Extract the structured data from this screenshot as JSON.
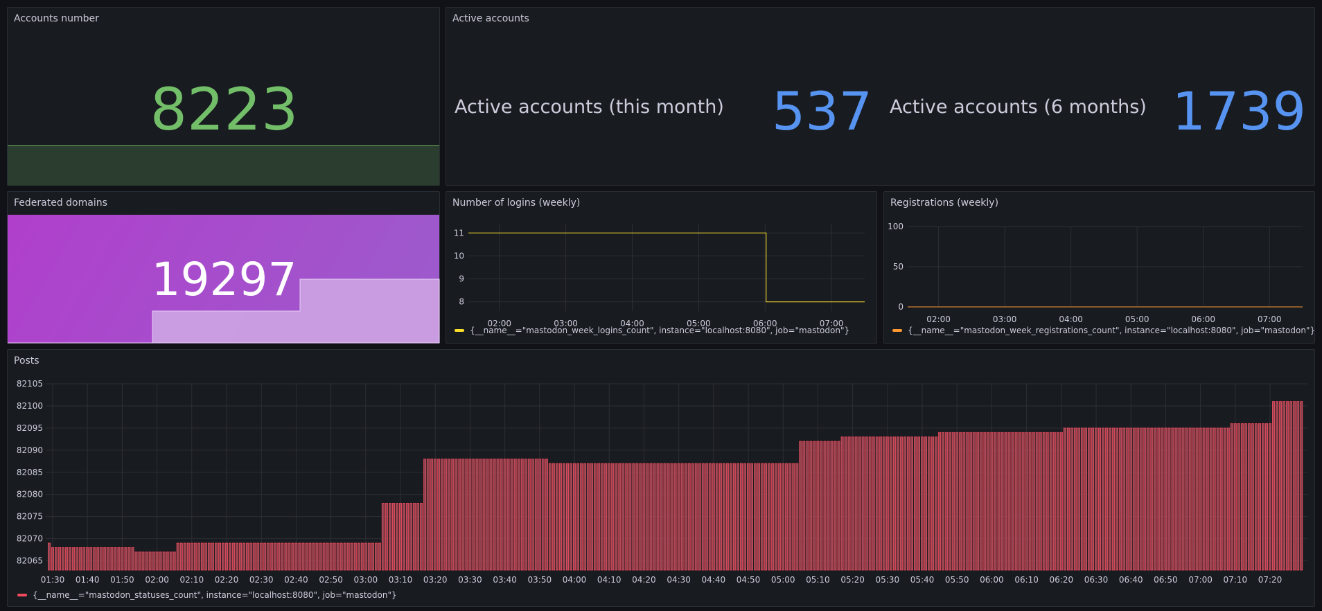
{
  "colors": {
    "green": "#73bf69",
    "green_fill": "#2b3d2f",
    "blue": "#5794f2",
    "purple_start": "#b03fcc",
    "purple_end": "#9c5ccc",
    "purple_spark": "#cba0e3",
    "yellow": "#fade2a",
    "orange": "#ff9830",
    "red": "#f2495c",
    "red_fill": "#8c4550"
  },
  "accounts": {
    "title": "Accounts number",
    "value": "8223"
  },
  "active": {
    "title": "Active accounts",
    "items": [
      {
        "label": "Active accounts (this month)",
        "value": "537"
      },
      {
        "label": "Active accounts (6 months)",
        "value": "1739"
      }
    ]
  },
  "federated": {
    "title": "Federated domains",
    "value": "19297",
    "sparkline_steps": [
      0,
      1,
      2
    ]
  },
  "chart_data": [
    {
      "type": "line",
      "title": "Number of logins (weekly)",
      "x_ticks": [
        "02:00",
        "03:00",
        "04:00",
        "05:00",
        "06:00",
        "07:00"
      ],
      "y_ticks": [
        "11",
        "10",
        "9",
        "8"
      ],
      "ylim": [
        7.6,
        11.4
      ],
      "xlim": [
        "01:32",
        "07:30"
      ],
      "series": [
        {
          "name": "{__name__=\"mastodon_week_logins_count\", instance=\"localhost:8080\", job=\"mastodon\"}",
          "points": [
            [
              "01:32",
              11
            ],
            [
              "06:01",
              11
            ],
            [
              "06:01",
              8
            ],
            [
              "07:30",
              8
            ]
          ]
        }
      ]
    },
    {
      "type": "line",
      "title": "Registrations (weekly)",
      "x_ticks": [
        "02:00",
        "03:00",
        "04:00",
        "05:00",
        "06:00",
        "07:00"
      ],
      "y_ticks": [
        "100",
        "50",
        "0"
      ],
      "ylim": [
        0,
        100
      ],
      "xlim": [
        "01:32",
        "07:30"
      ],
      "series": [
        {
          "name": "{__name__=\"mastodon_week_registrations_count\", instance=\"localhost:8080\", job=\"mastodon\"}",
          "points": [
            [
              "01:32",
              0
            ],
            [
              "07:30",
              0
            ]
          ]
        }
      ]
    },
    {
      "type": "bar",
      "title": "Posts",
      "x_ticks": [
        "01:30",
        "01:40",
        "01:50",
        "02:00",
        "02:10",
        "02:20",
        "02:30",
        "02:40",
        "02:50",
        "03:00",
        "03:10",
        "03:20",
        "03:30",
        "03:40",
        "03:50",
        "04:00",
        "04:10",
        "04:20",
        "04:30",
        "04:40",
        "04:50",
        "05:00",
        "05:10",
        "05:20",
        "05:30",
        "05:40",
        "05:50",
        "06:00",
        "06:10",
        "06:20",
        "06:30",
        "06:40",
        "06:50",
        "07:00",
        "07:10",
        "07:20"
      ],
      "y_ticks": [
        "82105",
        "82100",
        "82095",
        "82090",
        "82085",
        "82080",
        "82075",
        "82070",
        "82065"
      ],
      "ylim": [
        82062.9,
        82105
      ],
      "interval_minutes": 1,
      "series": [
        {
          "name": "{__name__=\"mastodon_statuses_count\", instance=\"localhost:8080\", job=\"mastodon\"}",
          "runs": [
            {
              "from": "01:29",
              "to": "01:29",
              "value": 82069
            },
            {
              "from": "01:30",
              "to": "01:53",
              "value": 82068
            },
            {
              "from": "01:54",
              "to": "02:05",
              "value": 82067
            },
            {
              "from": "02:06",
              "to": "03:04",
              "value": 82069
            },
            {
              "from": "03:05",
              "to": "03:16",
              "value": 82078
            },
            {
              "from": "03:17",
              "to": "03:52",
              "value": 82088
            },
            {
              "from": "03:53",
              "to": "05:04",
              "value": 82087
            },
            {
              "from": "05:05",
              "to": "05:16",
              "value": 82092
            },
            {
              "from": "05:17",
              "to": "05:44",
              "value": 82093
            },
            {
              "from": "05:45",
              "to": "06:20",
              "value": 82094
            },
            {
              "from": "06:21",
              "to": "07:08",
              "value": 82095
            },
            {
              "from": "07:09",
              "to": "07:20",
              "value": 82096
            },
            {
              "from": "07:21",
              "to": "07:29",
              "value": 82101
            }
          ]
        }
      ]
    }
  ]
}
